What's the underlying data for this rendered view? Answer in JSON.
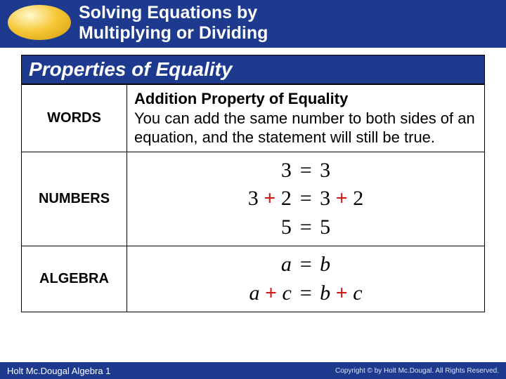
{
  "header": {
    "title_line1": "Solving Equations by",
    "title_line2": "Multiplying or Dividing"
  },
  "section_title": "Properties of Equality",
  "rows": {
    "words": {
      "label": "WORDS",
      "heading": "Addition Property of Equality",
      "body": "You can add the same number to both sides of an equation, and the statement will still be true."
    },
    "numbers": {
      "label": "NUMBERS",
      "lines": [
        {
          "left": [
            {
              "t": "3",
              "c": "num"
            }
          ],
          "right": [
            {
              "t": "3",
              "c": "num"
            }
          ]
        },
        {
          "left": [
            {
              "t": "3",
              "c": "num"
            },
            {
              "t": " + ",
              "c": "plus"
            },
            {
              "t": "2",
              "c": "num"
            }
          ],
          "right": [
            {
              "t": "3",
              "c": "num"
            },
            {
              "t": " + ",
              "c": "plus"
            },
            {
              "t": "2",
              "c": "num"
            }
          ]
        },
        {
          "left": [
            {
              "t": "5",
              "c": "num"
            }
          ],
          "right": [
            {
              "t": "5",
              "c": "num"
            }
          ]
        }
      ]
    },
    "algebra": {
      "label": "ALGEBRA",
      "lines": [
        {
          "left": [
            {
              "t": "a",
              "c": "var"
            }
          ],
          "right": [
            {
              "t": "b",
              "c": "var"
            }
          ]
        },
        {
          "left": [
            {
              "t": "a",
              "c": "var"
            },
            {
              "t": " + ",
              "c": "plus"
            },
            {
              "t": "c",
              "c": "var"
            }
          ],
          "right": [
            {
              "t": "b",
              "c": "var"
            },
            {
              "t": " + ",
              "c": "plus"
            },
            {
              "t": "c",
              "c": "var"
            }
          ]
        }
      ]
    }
  },
  "footer": {
    "left": "Holt Mc.Dougal Algebra 1",
    "right": "Copyright © by Holt Mc.Dougal. All Rights Reserved."
  },
  "colors": {
    "brand_blue": "#1d3a8f",
    "plus_red": "#d11a1a",
    "badge_light": "#fff9d0",
    "badge_mid": "#f7c93a",
    "badge_dark": "#d49a0d"
  }
}
